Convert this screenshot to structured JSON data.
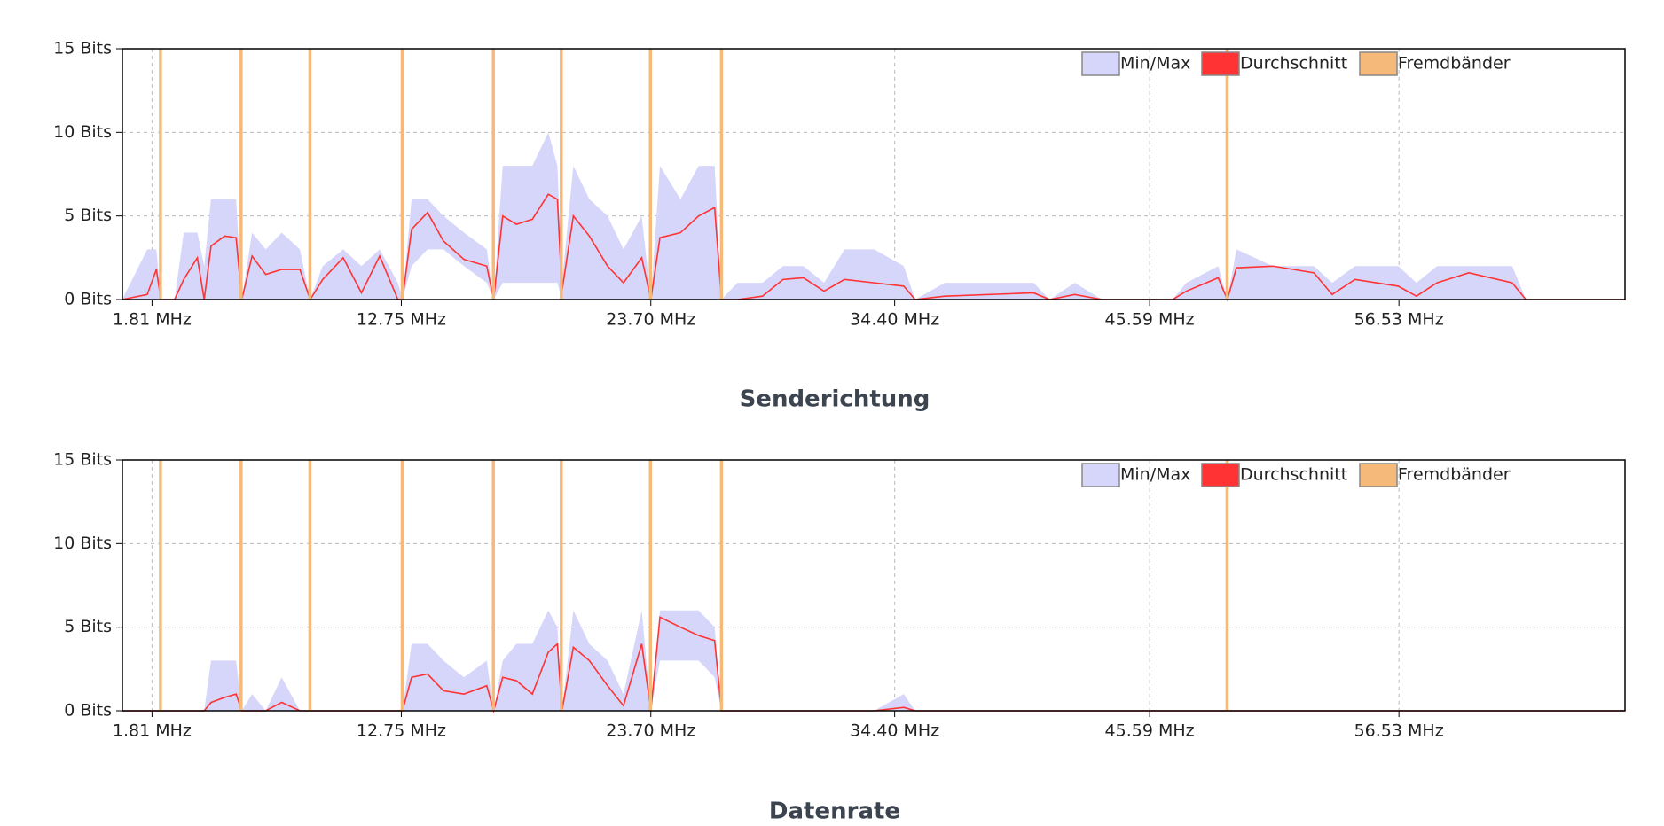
{
  "chart_data": [
    {
      "type": "spectrum",
      "x": [
        0.5,
        1.6,
        2.0,
        2.2,
        2.8,
        3.2,
        3.8,
        4.1,
        4.4,
        5.0,
        5.5,
        5.75,
        6.2,
        6.8,
        7.5,
        8.3,
        8.75,
        9.3,
        10.2,
        11.0,
        11.8,
        12.6,
        12.8,
        13.2,
        13.9,
        14.6,
        15.5,
        16.5,
        16.8,
        17.2,
        17.8,
        18.5,
        19.2,
        19.6,
        19.8,
        20.3,
        21.0,
        21.8,
        22.5,
        23.3,
        23.7,
        24.1,
        25.0,
        25.8,
        26.5,
        26.8,
        27.5,
        28.6,
        29.5,
        30.4,
        31.3,
        32.2,
        33.5,
        34.8,
        35.3,
        36.6,
        40.5,
        41.2,
        42.3,
        43.5,
        46.6,
        47.2,
        48.6,
        49.0,
        49.4,
        51.0,
        52.8,
        53.6,
        54.6,
        56.5,
        57.3,
        58.2,
        59.6,
        61.5,
        62.1,
        66.45
      ],
      "series": [
        {
          "name": "Min/Max",
          "color": "#d6d6fa",
          "high": [
            0,
            3,
            3,
            0,
            0,
            4,
            4,
            2,
            6,
            6,
            6,
            0,
            4,
            3,
            4,
            3,
            0,
            2,
            3,
            2,
            3,
            1,
            0,
            6,
            6,
            5,
            4,
            3,
            0,
            8,
            8,
            8,
            10,
            8,
            1,
            8,
            6,
            5,
            3,
            5,
            0,
            8,
            6,
            8,
            8,
            0,
            1,
            1,
            2,
            2,
            1,
            3,
            3,
            2,
            0,
            1,
            1,
            0,
            1,
            0,
            0,
            1,
            2,
            0,
            3,
            2,
            2,
            1,
            2,
            2,
            1,
            2,
            2,
            2,
            0,
            0
          ],
          "low": [
            0,
            0,
            0,
            0,
            0,
            0,
            0,
            0,
            0,
            0,
            0,
            0,
            0,
            0,
            0,
            0,
            0,
            0,
            0,
            0,
            0,
            0,
            0,
            2,
            3,
            3,
            2,
            1,
            0,
            1,
            1,
            1,
            1,
            1,
            0,
            0,
            0,
            0,
            0,
            0,
            0,
            0,
            0,
            0,
            0,
            0,
            0,
            0,
            0,
            0,
            0,
            0,
            0,
            0,
            0,
            0,
            0,
            0,
            0,
            0,
            0,
            0,
            0,
            0,
            0,
            0,
            0,
            0,
            0,
            0,
            0,
            0,
            0,
            0,
            0,
            0
          ]
        },
        {
          "name": "Durchschnitt",
          "color": "#ff3333",
          "values": [
            0,
            0.3,
            1.8,
            0,
            0,
            1.2,
            2.5,
            0,
            3.2,
            3.8,
            3.7,
            0,
            2.6,
            1.5,
            1.8,
            1.8,
            0,
            1.2,
            2.5,
            0.4,
            2.6,
            0,
            0,
            4.2,
            5.2,
            3.5,
            2.4,
            2,
            0,
            5,
            4.5,
            4.8,
            6.3,
            6,
            0.5,
            5,
            3.8,
            2,
            1,
            2.5,
            0,
            3.7,
            4,
            5,
            5.5,
            0,
            0,
            0.2,
            1.2,
            1.3,
            0.5,
            1.2,
            1,
            0.8,
            0,
            0.2,
            0.4,
            0,
            0.3,
            0,
            0,
            0.5,
            1.3,
            0,
            1.9,
            2,
            1.6,
            0.3,
            1.2,
            0.8,
            0.2,
            1,
            1.6,
            1,
            0,
            0
          ]
        },
        {
          "name": "Fremdbänder",
          "color": "#f5b97a",
          "x": [
            2.18,
            5.72,
            8.74,
            12.79,
            16.79,
            19.77,
            23.68,
            26.8,
            48.99
          ]
        }
      ],
      "xlim": [
        0.51,
        66.45
      ],
      "ylim": [
        0,
        15
      ],
      "xticks": [
        {
          "value": 1.81,
          "label": "1.81 MHz"
        },
        {
          "value": 12.75,
          "label": "12.75 MHz"
        },
        {
          "value": 23.7,
          "label": "23.70 MHz"
        },
        {
          "value": 34.4,
          "label": "34.40 MHz"
        },
        {
          "value": 45.59,
          "label": "45.59 MHz"
        },
        {
          "value": 56.53,
          "label": "56.53 MHz"
        }
      ],
      "yticks": [
        {
          "value": 0,
          "label": "0 Bits"
        },
        {
          "value": 5,
          "label": "5 Bits"
        },
        {
          "value": 10,
          "label": "10 Bits"
        },
        {
          "value": 15,
          "label": "15 Bits"
        }
      ],
      "grid": true,
      "legend": "top-right"
    },
    {
      "type": "spectrum",
      "title": "Senderichtung",
      "x": [
        0.5,
        1.6,
        2.0,
        2.2,
        2.8,
        3.2,
        3.8,
        4.1,
        4.4,
        5.0,
        5.5,
        5.75,
        6.2,
        6.8,
        7.5,
        8.3,
        8.75,
        9.3,
        10.2,
        11.0,
        11.8,
        12.6,
        12.8,
        13.2,
        13.9,
        14.6,
        15.5,
        16.5,
        16.8,
        17.2,
        17.8,
        18.5,
        19.2,
        19.6,
        19.8,
        20.3,
        21.0,
        21.8,
        22.5,
        23.3,
        23.7,
        24.1,
        25.0,
        25.8,
        26.5,
        26.8,
        27.5,
        28.6,
        29.5,
        30.4,
        31.3,
        32.2,
        33.5,
        34.8,
        35.3,
        36.6,
        40.5,
        41.2,
        42.3,
        43.5,
        46.6,
        47.2,
        48.6,
        49.0,
        49.4,
        51.0,
        52.8,
        53.6,
        54.6,
        56.5,
        57.3,
        58.2,
        59.6,
        61.5,
        62.1,
        66.45
      ],
      "series": [
        {
          "name": "Min/Max",
          "color": "#d6d6fa",
          "high": [
            0,
            0,
            0,
            0,
            0,
            0,
            0,
            0,
            3,
            3,
            3,
            0,
            1,
            0,
            2,
            0,
            0,
            0,
            0,
            0,
            0,
            0,
            0,
            4,
            4,
            3,
            2,
            3,
            0,
            3,
            4,
            4,
            6,
            5,
            0,
            6,
            4,
            3,
            1,
            6,
            0,
            6,
            6,
            6,
            5,
            0,
            0,
            0,
            0,
            0,
            0,
            0,
            0,
            1,
            0,
            0,
            0,
            0,
            0,
            0,
            0,
            0,
            0,
            0,
            0,
            0,
            0,
            0,
            0,
            0,
            0,
            0,
            0,
            0,
            0,
            0
          ],
          "low": [
            0,
            0,
            0,
            0,
            0,
            0,
            0,
            0,
            0,
            0,
            0,
            0,
            0,
            0,
            0,
            0,
            0,
            0,
            0,
            0,
            0,
            0,
            0,
            0,
            0,
            0,
            0,
            0,
            0,
            0,
            0,
            0,
            0,
            0,
            0,
            0,
            0,
            0,
            0,
            0,
            0,
            3,
            3,
            3,
            2,
            0,
            0,
            0,
            0,
            0,
            0,
            0,
            0,
            0,
            0,
            0,
            0,
            0,
            0,
            0,
            0,
            0,
            0,
            0,
            0,
            0,
            0,
            0,
            0,
            0,
            0,
            0,
            0,
            0,
            0,
            0
          ]
        },
        {
          "name": "Durchschnitt",
          "color": "#ff3333",
          "values": [
            0,
            0,
            0,
            0,
            0,
            0,
            0,
            0,
            0.5,
            0.8,
            1,
            0,
            0,
            0,
            0.5,
            0,
            0,
            0,
            0,
            0,
            0,
            0,
            0,
            2,
            2.2,
            1.2,
            1,
            1.5,
            0,
            2,
            1.8,
            1,
            3.5,
            4,
            0,
            3.8,
            3,
            1.5,
            0.3,
            4,
            0,
            5.6,
            5,
            4.5,
            4.2,
            0,
            0,
            0,
            0,
            0,
            0,
            0,
            0,
            0.2,
            0,
            0,
            0,
            0,
            0,
            0,
            0,
            0,
            0,
            0,
            0,
            0,
            0,
            0,
            0,
            0,
            0,
            0,
            0,
            0,
            0,
            0
          ]
        },
        {
          "name": "Fremdbänder",
          "color": "#f5b97a",
          "x": [
            2.18,
            5.72,
            8.74,
            12.79,
            16.79,
            19.77,
            23.68,
            26.8,
            48.99
          ]
        }
      ],
      "xlim": [
        0.51,
        66.45
      ],
      "ylim": [
        0,
        15
      ],
      "xticks": [
        {
          "value": 1.81,
          "label": "1.81 MHz"
        },
        {
          "value": 12.75,
          "label": "12.75 MHz"
        },
        {
          "value": 23.7,
          "label": "23.70 MHz"
        },
        {
          "value": 34.4,
          "label": "34.40 MHz"
        },
        {
          "value": 45.59,
          "label": "45.59 MHz"
        },
        {
          "value": 56.53,
          "label": "56.53 MHz"
        }
      ],
      "yticks": [
        {
          "value": 0,
          "label": "0 Bits"
        },
        {
          "value": 5,
          "label": "5 Bits"
        },
        {
          "value": 10,
          "label": "10 Bits"
        },
        {
          "value": 15,
          "label": "15 Bits"
        }
      ],
      "grid": true,
      "legend": "top-right"
    }
  ],
  "next_section": {
    "title": "Datenrate"
  }
}
